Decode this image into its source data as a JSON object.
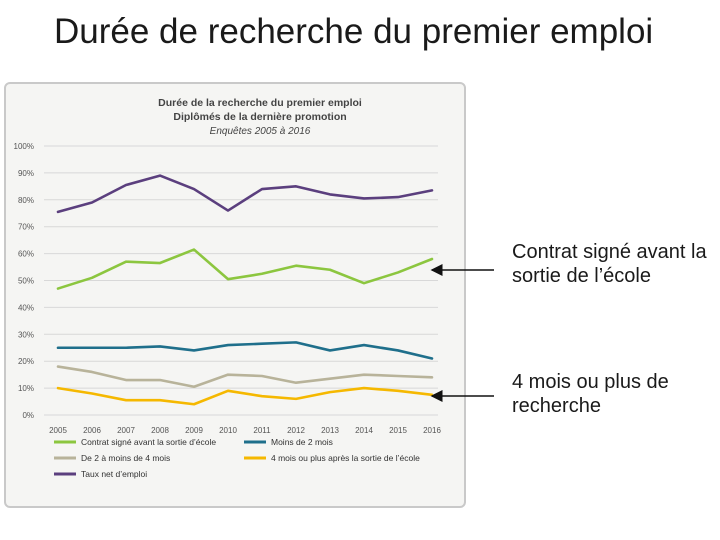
{
  "slide": {
    "title": "Durée de recherche du premier emploi",
    "callouts": [
      "Contrat signé avant la sortie de l’école",
      "4 mois ou plus de recherche"
    ]
  },
  "chart_data": {
    "type": "line",
    "title": "Durée de la recherche du premier emploi",
    "subtitle": "Diplômés de la dernière promotion",
    "subtitle2": "Enquêtes 2005 à 2016",
    "x": [
      "2005",
      "2006",
      "2007",
      "2008",
      "2009",
      "2010",
      "2011",
      "2012",
      "2013",
      "2014",
      "2015",
      "2016"
    ],
    "ylim": [
      0,
      100
    ],
    "yticks": [
      "0%",
      "10%",
      "20%",
      "30%",
      "40%",
      "50%",
      "60%",
      "70%",
      "80%",
      "90%",
      "100%"
    ],
    "grid": true,
    "legend_position": "bottom",
    "series": [
      {
        "name": "Taux net d’emploi",
        "color": "#5b3f7e",
        "values": [
          75.5,
          79,
          85.5,
          89,
          84,
          76,
          84,
          85,
          82,
          80.5,
          81,
          83.5
        ]
      },
      {
        "name": "Contrat signé avant la sortie d’école",
        "color": "#8cc63f",
        "values": [
          47,
          51,
          57,
          56.5,
          61.5,
          50.5,
          52.5,
          55.5,
          54,
          49,
          53,
          58
        ]
      },
      {
        "name": "Moins de 2 mois",
        "color": "#1f6f8b",
        "values": [
          25,
          25,
          25,
          25.5,
          24,
          26,
          26.5,
          27,
          24,
          26,
          24,
          21
        ]
      },
      {
        "name": "De 2 à moins de 4 mois",
        "color": "#b8b39a",
        "values": [
          18,
          16,
          13,
          13,
          10.5,
          15,
          14.5,
          12,
          13.5,
          15,
          14.5,
          14
        ]
      },
      {
        "name": "4 mois ou plus après la sortie de l’école",
        "color": "#f5b800",
        "values": [
          10,
          8,
          5.5,
          5.5,
          4,
          9,
          7,
          6,
          8.5,
          10,
          9,
          7.5
        ]
      }
    ]
  }
}
